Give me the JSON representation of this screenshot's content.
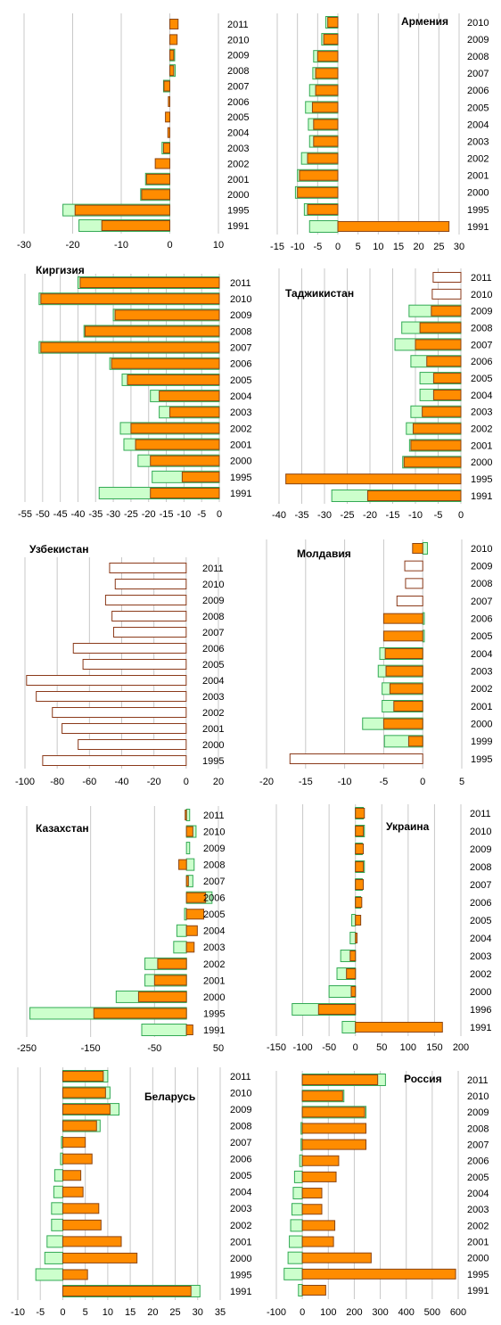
{
  "chart_data": [
    {
      "type": "bar",
      "categories": [
        "2011",
        "2010",
        "2009",
        "2008",
        "2007",
        "2006",
        "2005",
        "2004",
        "2003",
        "2002",
        "2001",
        "2000",
        "1995",
        "1991"
      ],
      "series": [
        {
          "color": "#ccffcc",
          "edgecolor": "#33aa55",
          "values": [
            null,
            null,
            1,
            1.1,
            -1.3,
            null,
            null,
            null,
            -1.6,
            null,
            -5,
            -6,
            -22,
            -18.7
          ]
        },
        {
          "color": "#ff8c00",
          "edgecolor": "#8b4513",
          "values": [
            1.7,
            1.5,
            0.8,
            0.8,
            -1.2,
            -0.3,
            -0.9,
            -0.4,
            -1.3,
            -3,
            -4.8,
            -5.8,
            -19.5,
            -14
          ]
        }
      ],
      "xlim": [
        -30,
        10
      ],
      "xticks": [
        -30,
        -20,
        -10,
        0,
        10
      ],
      "grid": true
    },
    {
      "type": "bar",
      "title": "Армения",
      "categories": [
        "2010",
        "2009",
        "2008",
        "2007",
        "2006",
        "2005",
        "2004",
        "2003",
        "2002",
        "2001",
        "2000",
        "1995",
        "1991"
      ],
      "series": [
        {
          "color": "#ccffcc",
          "edgecolor": "#33aa55",
          "values": [
            -3,
            -4,
            -6,
            -6.2,
            -7,
            -8,
            -7.3,
            -7,
            -9,
            -10,
            -10.5,
            -8.3,
            -7
          ]
        },
        {
          "color": "#ff8c00",
          "edgecolor": "#8b4513",
          "values": [
            -2.5,
            -3.5,
            -5,
            -5.5,
            -5.5,
            -6.3,
            -6,
            -6,
            -7.5,
            -9.5,
            -10,
            -7.5,
            27.5
          ]
        }
      ],
      "xlim": [
        -15,
        30
      ],
      "xticks": [
        -15,
        -10,
        -5,
        0,
        5,
        10,
        15,
        20,
        25,
        30
      ],
      "grid": true
    },
    {
      "type": "bar",
      "title": "Киргизия",
      "categories": [
        "2011",
        "2010",
        "2009",
        "2008",
        "2007",
        "2006",
        "2005",
        "2004",
        "2003",
        "2002",
        "2001",
        "2000",
        "1995",
        "1991"
      ],
      "series": [
        {
          "color": "#ccffcc",
          "edgecolor": "#33aa55",
          "values": [
            -40,
            -51,
            -30,
            -38.3,
            -51,
            -31,
            -27.5,
            -19.5,
            -17,
            -28,
            -27,
            -23,
            -19,
            -34
          ]
        },
        {
          "color": "#ff8c00",
          "edgecolor": "#8b4513",
          "values": [
            -39.4,
            -50.5,
            -29.5,
            -38,
            -50.5,
            -30.5,
            -26,
            -17,
            -14,
            -25,
            -23.7,
            -19.5,
            -10.5,
            -19.5
          ]
        }
      ],
      "xlim": [
        -55,
        0
      ],
      "xticks": [
        -55,
        -50,
        -45,
        -40,
        -35,
        -30,
        -25,
        -20,
        -15,
        -10,
        -5,
        0
      ],
      "grid": true
    },
    {
      "type": "bar",
      "title": "Таджикистан",
      "categories": [
        "2011",
        "2010",
        "2009",
        "2008",
        "2007",
        "2006",
        "2005",
        "2004",
        "2003",
        "2002",
        "2001",
        "2000",
        "1995",
        "1991"
      ],
      "series": [
        {
          "color": "#ccffcc",
          "edgecolor": "#33aa55",
          "values": [
            null,
            null,
            -11.4,
            -13,
            -14.5,
            -11,
            -9,
            -9,
            -11,
            -12,
            -11.3,
            -12.8,
            null,
            -28.4
          ]
        },
        {
          "color": "#ff8c00",
          "edgecolor": "#8b4513",
          "values": [
            null,
            null,
            -6.5,
            -9,
            -10,
            -7.5,
            -6,
            -6,
            -8.5,
            -10.5,
            -11,
            -12.5,
            -38.5,
            -20.5
          ]
        },
        {
          "color": "#ffffff",
          "edgecolor": "#8b3a1a",
          "values": [
            -6.1,
            -6.3,
            null,
            null,
            null,
            null,
            null,
            null,
            null,
            null,
            null,
            null,
            null,
            null
          ]
        }
      ],
      "xlim": [
        -40,
        0
      ],
      "xticks": [
        -40,
        -35,
        -30,
        -25,
        -20,
        -15,
        -10,
        -5,
        0
      ],
      "grid": true
    },
    {
      "type": "bar",
      "title": "Узбекистан",
      "categories": [
        "2011",
        "2010",
        "2009",
        "2008",
        "2007",
        "2006",
        "2005",
        "2004",
        "2003",
        "2002",
        "2001",
        "2000",
        "1995"
      ],
      "series": [
        {
          "color": "#ffffff",
          "edgecolor": "#8b3a1a",
          "values": [
            -47.5,
            -44,
            -50,
            -46,
            -45,
            -70,
            -64,
            -99,
            -93,
            -83,
            -77,
            -67,
            -89
          ]
        }
      ],
      "xlim": [
        -100,
        20
      ],
      "xticks": [
        -100,
        -80,
        -60,
        -40,
        -20,
        0,
        20
      ],
      "grid": true
    },
    {
      "type": "bar",
      "title": "Молдавия",
      "categories": [
        "2010",
        "2009",
        "2008",
        "2007",
        "2006",
        "2005",
        "2004",
        "2003",
        "2002",
        "2001",
        "2000",
        "1999",
        "1995"
      ],
      "series": [
        {
          "color": "#ccffcc",
          "edgecolor": "#33aa55",
          "values": [
            0.6,
            null,
            null,
            null,
            0.2,
            0.2,
            -5.5,
            -5.7,
            -5.2,
            -5.2,
            -7.7,
            -4.9,
            null
          ]
        },
        {
          "color": "#ff8c00",
          "edgecolor": "#8b4513",
          "values": [
            -1.3,
            null,
            null,
            null,
            -5,
            -5,
            -4.8,
            -4.7,
            -4.2,
            -3.7,
            -5,
            -1.8,
            null
          ]
        },
        {
          "color": "#ffffff",
          "edgecolor": "#8b3a1a",
          "values": [
            null,
            -2.3,
            -2.2,
            -3.3,
            null,
            null,
            null,
            null,
            null,
            null,
            null,
            null,
            -17
          ]
        }
      ],
      "xlim": [
        -20,
        5
      ],
      "xticks": [
        -20,
        -15,
        -10,
        -5,
        0,
        5
      ],
      "grid": true
    },
    {
      "type": "bar",
      "title": "Казахстан",
      "categories": [
        "2011",
        "2010",
        "2009",
        "2008",
        "2007",
        "2006",
        "2005",
        "2004",
        "2003",
        "2002",
        "2001",
        "2000",
        "1995",
        "1991"
      ],
      "series": [
        {
          "color": "#ccffcc",
          "edgecolor": "#33aa55",
          "values": [
            5,
            15,
            5,
            12,
            10,
            40,
            -3,
            -15,
            -20,
            -65,
            -65,
            -110,
            -245,
            -70
          ]
        },
        {
          "color": "#ff8c00",
          "edgecolor": "#8b4513",
          "values": [
            -2,
            10,
            null,
            -12,
            3,
            30,
            27,
            17,
            12,
            -45,
            -50,
            -75,
            -145,
            10
          ]
        }
      ],
      "xlim": [
        -250,
        50
      ],
      "xticks": [
        -250,
        -150,
        -50,
        50
      ],
      "grid": true
    },
    {
      "type": "bar",
      "title": "Украина",
      "categories": [
        "2011",
        "2010",
        "2009",
        "2008",
        "2007",
        "2006",
        "2005",
        "2004",
        "2003",
        "2002",
        "2000",
        "1996",
        "1991"
      ],
      "series": [
        {
          "color": "#ccffcc",
          "edgecolor": "#33aa55",
          "values": [
            15,
            17,
            13,
            17,
            13,
            10,
            -7,
            -10,
            -28,
            -35,
            -50,
            -120,
            -25
          ]
        },
        {
          "color": "#ff8c00",
          "edgecolor": "#8b4513",
          "values": [
            17,
            15,
            15,
            15,
            15,
            12,
            10,
            3,
            -10,
            -17,
            -8,
            -70,
            165
          ]
        }
      ],
      "xlim": [
        -150,
        200
      ],
      "xticks": [
        -150,
        -100,
        -50,
        0,
        50,
        100,
        150,
        200
      ],
      "grid": true
    },
    {
      "type": "bar",
      "title": "Беларусь",
      "categories": [
        "2011",
        "2010",
        "2009",
        "2008",
        "2007",
        "2006",
        "2005",
        "2004",
        "2003",
        "2002",
        "2001",
        "2000",
        "1995",
        "1991"
      ],
      "series": [
        {
          "color": "#ccffcc",
          "edgecolor": "#33aa55",
          "values": [
            10,
            10.5,
            12.5,
            8.3,
            -0.3,
            -0.5,
            -1.8,
            -2,
            -2.5,
            -2.5,
            -3.5,
            -4,
            -6,
            30.5
          ]
        },
        {
          "color": "#ff8c00",
          "edgecolor": "#8b4513",
          "values": [
            9,
            9.5,
            10.5,
            7.5,
            5,
            6.5,
            4,
            4.5,
            8,
            8.5,
            13,
            16.5,
            5.5,
            28.5
          ]
        }
      ],
      "xlim": [
        -10,
        35
      ],
      "xticks": [
        -10,
        -5,
        0,
        5,
        10,
        15,
        20,
        25,
        30,
        35
      ],
      "grid": true
    },
    {
      "type": "bar",
      "title": "Россия",
      "categories": [
        "2011",
        "2010",
        "2009",
        "2008",
        "2007",
        "2006",
        "2005",
        "2004",
        "2003",
        "2002",
        "2001",
        "2000",
        "1995",
        "1991"
      ],
      "series": [
        {
          "color": "#ccffcc",
          "edgecolor": "#33aa55",
          "values": [
            320,
            160,
            245,
            -5,
            -5,
            -10,
            -30,
            -35,
            -40,
            -45,
            -50,
            -55,
            -70,
            -15
          ]
        },
        {
          "color": "#ff8c00",
          "edgecolor": "#8b4513",
          "values": [
            290,
            155,
            240,
            245,
            245,
            140,
            130,
            75,
            75,
            125,
            120,
            265,
            590,
            90
          ]
        }
      ],
      "xlim": [
        -100,
        600
      ],
      "xticks": [
        -100,
        0,
        100,
        200,
        300,
        400,
        500,
        600
      ],
      "grid": true
    }
  ]
}
